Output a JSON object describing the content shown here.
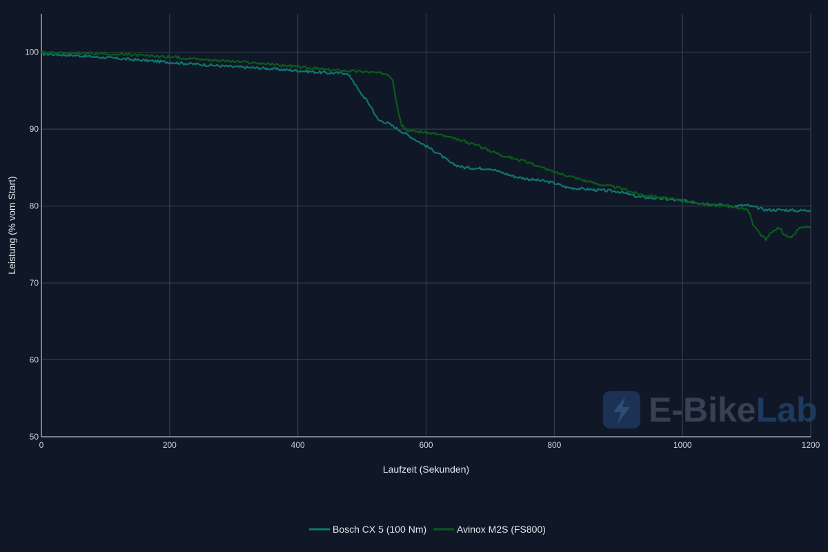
{
  "chart_data": {
    "type": "line",
    "xlabel": "Laufzeit (Sekunden)",
    "ylabel": "Leistung (% vom Start)",
    "xlim": [
      0,
      1200
    ],
    "ylim": [
      50,
      105
    ],
    "x_ticks": [
      0,
      200,
      400,
      600,
      800,
      1000,
      1200
    ],
    "y_ticks": [
      50,
      60,
      70,
      80,
      90,
      100
    ],
    "grid": true,
    "legend_position": "bottom-center",
    "series": [
      {
        "name": "Bosch CX 5 (100 Nm)",
        "color": "#0f766e",
        "points": [
          [
            0,
            99.8
          ],
          [
            50,
            99.6
          ],
          [
            100,
            99.3
          ],
          [
            150,
            99.0
          ],
          [
            200,
            98.7
          ],
          [
            250,
            98.4
          ],
          [
            300,
            98.1
          ],
          [
            350,
            97.9
          ],
          [
            400,
            97.6
          ],
          [
            450,
            97.3
          ],
          [
            475,
            97.3
          ],
          [
            485,
            96.5
          ],
          [
            495,
            95.0
          ],
          [
            505,
            94.0
          ],
          [
            515,
            92.8
          ],
          [
            525,
            91.2
          ],
          [
            540,
            90.8
          ],
          [
            560,
            89.8
          ],
          [
            580,
            88.8
          ],
          [
            600,
            87.8
          ],
          [
            620,
            86.8
          ],
          [
            640,
            85.5
          ],
          [
            660,
            85.0
          ],
          [
            680,
            84.9
          ],
          [
            700,
            84.9
          ],
          [
            720,
            84.3
          ],
          [
            740,
            83.8
          ],
          [
            760,
            83.5
          ],
          [
            780,
            83.3
          ],
          [
            800,
            83.0
          ],
          [
            820,
            82.4
          ],
          [
            850,
            82.2
          ],
          [
            880,
            82.0
          ],
          [
            900,
            81.9
          ],
          [
            930,
            81.2
          ],
          [
            960,
            81.0
          ],
          [
            1000,
            80.7
          ],
          [
            1040,
            80.3
          ],
          [
            1080,
            80.0
          ],
          [
            1100,
            80.1
          ],
          [
            1110,
            79.9
          ],
          [
            1130,
            79.5
          ],
          [
            1160,
            79.5
          ],
          [
            1180,
            79.4
          ],
          [
            1200,
            79.5
          ]
        ]
      },
      {
        "name": "Avinox M2S (FS800)",
        "color": "#0a5c1a",
        "points": [
          [
            0,
            100.0
          ],
          [
            50,
            99.9
          ],
          [
            100,
            99.8
          ],
          [
            150,
            99.6
          ],
          [
            200,
            99.4
          ],
          [
            250,
            99.1
          ],
          [
            300,
            98.8
          ],
          [
            350,
            98.5
          ],
          [
            400,
            98.1
          ],
          [
            450,
            97.7
          ],
          [
            500,
            97.5
          ],
          [
            540,
            97.2
          ],
          [
            548,
            96.5
          ],
          [
            555,
            93.0
          ],
          [
            562,
            90.5
          ],
          [
            570,
            89.8
          ],
          [
            600,
            89.6
          ],
          [
            620,
            89.3
          ],
          [
            640,
            88.8
          ],
          [
            660,
            88.4
          ],
          [
            680,
            87.9
          ],
          [
            700,
            87.2
          ],
          [
            720,
            86.6
          ],
          [
            740,
            86.1
          ],
          [
            760,
            85.7
          ],
          [
            780,
            85.0
          ],
          [
            800,
            84.4
          ],
          [
            820,
            84.0
          ],
          [
            840,
            83.5
          ],
          [
            860,
            83.0
          ],
          [
            880,
            82.7
          ],
          [
            900,
            82.4
          ],
          [
            930,
            81.6
          ],
          [
            960,
            81.2
          ],
          [
            1000,
            80.7
          ],
          [
            1040,
            80.2
          ],
          [
            1080,
            79.9
          ],
          [
            1100,
            79.6
          ],
          [
            1105,
            79.0
          ],
          [
            1110,
            77.5
          ],
          [
            1120,
            76.5
          ],
          [
            1130,
            75.6
          ],
          [
            1140,
            76.6
          ],
          [
            1150,
            77.2
          ],
          [
            1160,
            76.2
          ],
          [
            1170,
            75.8
          ],
          [
            1180,
            77.0
          ],
          [
            1190,
            77.3
          ],
          [
            1200,
            77.2
          ]
        ]
      }
    ]
  },
  "watermark": {
    "text_main": "E-Bike",
    "text_accent": "Lab",
    "icon": "lightning-bolt-icon",
    "color_main": "#374151",
    "color_accent": "#1e3a5f"
  }
}
